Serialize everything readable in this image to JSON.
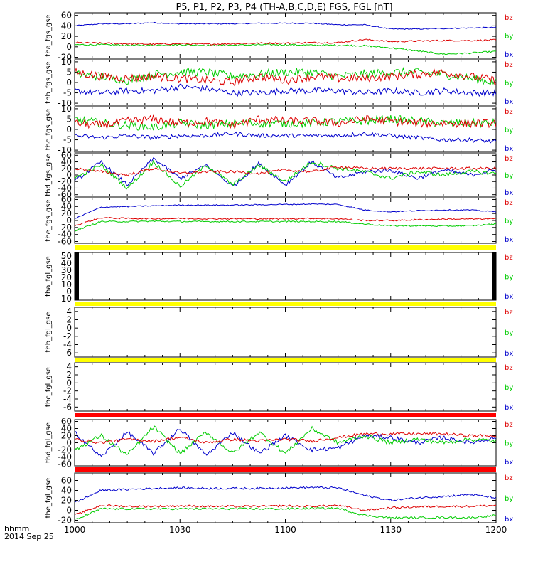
{
  "title": "P5, P1, P2, P3, P4 (TH-A,B,C,D,E) FGS, FGL [nT]",
  "footer": {
    "format": "hhmm",
    "date": "2014 Sep 25"
  },
  "x_ticks": [
    "1000",
    "1030",
    "1100",
    "1130",
    "1200"
  ],
  "legend_labels": [
    "bz",
    "by",
    "bx"
  ],
  "colors": {
    "bx": "#0000cc",
    "by": "#00cc00",
    "bz": "#dd0000",
    "bar_yellow": "#ffff00",
    "bar_red": "#ff0000",
    "axis": "#000000"
  },
  "chart_data": [
    {
      "type": "line",
      "name": "tha_fgs_gse",
      "ylabel": "tha_fgs_gse",
      "ylim": [
        -22,
        65
      ],
      "yticks": [
        -20,
        0,
        20,
        40,
        60
      ],
      "x_range": [
        "10:00",
        "12:00"
      ],
      "series": [
        {
          "name": "bz",
          "values": [
            8,
            7,
            6,
            5,
            6,
            5,
            6,
            7,
            7,
            8,
            8,
            14,
            10,
            11,
            12,
            12,
            13
          ],
          "noise": 1.5
        },
        {
          "name": "by",
          "values": [
            4,
            4,
            3,
            3,
            4,
            3,
            3,
            4,
            4,
            3,
            3,
            2,
            -2,
            -8,
            -14,
            -12,
            -9
          ],
          "noise": 1.5
        },
        {
          "name": "bx",
          "values": [
            40,
            44,
            44,
            46,
            44,
            44,
            44,
            45,
            45,
            45,
            42,
            42,
            34,
            34,
            35,
            36,
            37
          ],
          "noise": 1
        }
      ]
    },
    {
      "type": "line",
      "name": "thb_fgs_gse",
      "ylabel": "thb_fgs_gse",
      "ylim": [
        -11,
        11
      ],
      "yticks": [
        -10,
        -5,
        0,
        5,
        10
      ],
      "x_range": [
        "10:00",
        "12:00"
      ],
      "series": [
        {
          "name": "bz",
          "values": [
            5,
            3,
            2,
            3,
            2,
            1,
            0,
            3,
            1,
            3,
            2,
            2,
            3,
            4,
            5,
            3,
            1
          ],
          "noise": 2
        },
        {
          "name": "by",
          "values": [
            4,
            3,
            1,
            4,
            5,
            5,
            3,
            4,
            5,
            5,
            3,
            4,
            5,
            5,
            4,
            2,
            0
          ],
          "noise": 2
        },
        {
          "name": "bx",
          "values": [
            -4,
            -5,
            -4,
            -4,
            -2,
            -3,
            -5,
            -5,
            -4,
            -4,
            -4,
            -5,
            -4,
            -5,
            -4,
            -5,
            -5
          ],
          "noise": 1.5
        }
      ]
    },
    {
      "type": "line",
      "name": "thc_fgs_gse",
      "ylabel": "thc_fgs_gse",
      "ylim": [
        -11,
        11
      ],
      "yticks": [
        -10,
        -5,
        0,
        5,
        10
      ],
      "x_range": [
        "10:00",
        "12:00"
      ],
      "series": [
        {
          "name": "bz",
          "values": [
            3,
            2,
            4,
            5,
            3,
            4,
            2,
            5,
            4,
            4,
            3,
            5,
            4,
            3,
            3,
            3,
            3
          ],
          "noise": 2
        },
        {
          "name": "by",
          "values": [
            5,
            3,
            2,
            1,
            3,
            2,
            3,
            3,
            3,
            3,
            4,
            4,
            5,
            4,
            3,
            3,
            3
          ],
          "noise": 2
        },
        {
          "name": "bx",
          "values": [
            -3,
            -4,
            -3,
            -4,
            -3,
            -3,
            -2,
            -3,
            -3,
            -3,
            -3,
            -2,
            -3,
            -4,
            -5,
            -5,
            -6
          ],
          "noise": 1
        }
      ]
    },
    {
      "type": "line",
      "name": "thd_fgs_gse",
      "ylabel": "thd_fgs_gse",
      "ylim": [
        -65,
        65
      ],
      "yticks": [
        -60,
        -40,
        -20,
        0,
        20,
        40,
        60
      ],
      "x_range": [
        "10:00",
        "12:00"
      ],
      "series": [
        {
          "name": "bz",
          "values": [
            20,
            10,
            0,
            20,
            5,
            10,
            10,
            5,
            15,
            10,
            25,
            20,
            20,
            20,
            20,
            20,
            20
          ],
          "noise": 4
        },
        {
          "name": "by",
          "values": [
            -10,
            30,
            -40,
            40,
            -35,
            30,
            -30,
            30,
            -20,
            40,
            20,
            10,
            -10,
            10,
            0,
            10,
            5
          ],
          "noise": 6
        },
        {
          "name": "bx",
          "values": [
            -20,
            40,
            -30,
            50,
            -10,
            30,
            -35,
            35,
            -30,
            40,
            -10,
            10,
            15,
            -10,
            15,
            0,
            15
          ],
          "noise": 6
        }
      ]
    },
    {
      "type": "line",
      "name": "the_fgs_gse",
      "ylabel": "the_fgs_gse",
      "ylim": [
        -65,
        65
      ],
      "yticks": [
        -60,
        -40,
        -20,
        0,
        20,
        40,
        60
      ],
      "x_range": [
        "10:00",
        "12:00"
      ],
      "series": [
        {
          "name": "bz",
          "values": [
            -15,
            8,
            6,
            5,
            6,
            5,
            5,
            5,
            5,
            6,
            5,
            0,
            0,
            2,
            4,
            4,
            5
          ],
          "noise": 2
        },
        {
          "name": "by",
          "values": [
            -30,
            -3,
            -3,
            -2,
            -3,
            -3,
            -3,
            -3,
            -3,
            -3,
            -3,
            -10,
            -15,
            -15,
            -16,
            -15,
            -10
          ],
          "noise": 2
        },
        {
          "name": "bx",
          "values": [
            5,
            38,
            40,
            42,
            44,
            44,
            44,
            45,
            46,
            47,
            46,
            30,
            25,
            28,
            30,
            30,
            25
          ],
          "noise": 1.5
        }
      ]
    },
    {
      "type": "line",
      "name": "tha_fgl_gse",
      "ylabel": "tha_fgl_gse",
      "ylim": [
        -12,
        55
      ],
      "yticks": [
        -10,
        0,
        10,
        20,
        30,
        40,
        50
      ],
      "x_range": [
        "10:00",
        "12:00"
      ],
      "series": []
    },
    {
      "type": "line",
      "name": "thb_fgl_gse",
      "ylabel": "thb_fgl_gse",
      "ylim": [
        -7,
        5
      ],
      "yticks": [
        -6,
        -4,
        -2,
        0,
        2,
        4
      ],
      "x_range": [
        "10:00",
        "12:00"
      ],
      "series": []
    },
    {
      "type": "line",
      "name": "thc_fgl_gse",
      "ylabel": "thc_fgl_gse",
      "ylim": [
        -7,
        5
      ],
      "yticks": [
        -6,
        -4,
        -2,
        0,
        2,
        4
      ],
      "x_range": [
        "10:00",
        "12:00"
      ],
      "series": []
    },
    {
      "type": "line",
      "name": "thd_fgl_gse",
      "ylabel": "thd_fgl_gse",
      "ylim": [
        -65,
        65
      ],
      "yticks": [
        -60,
        -40,
        -20,
        0,
        20,
        40,
        60
      ],
      "x_range": [
        "10:00",
        "12:00"
      ],
      "series": [
        {
          "name": "bz",
          "values": [
            10,
            0,
            10,
            5,
            15,
            0,
            10,
            5,
            10,
            5,
            15,
            25,
            25,
            25,
            25,
            20,
            20
          ],
          "noise": 4
        },
        {
          "name": "by",
          "values": [
            -20,
            20,
            -35,
            45,
            -30,
            30,
            -30,
            30,
            -30,
            40,
            0,
            20,
            0,
            10,
            0,
            10,
            5
          ],
          "noise": 6
        },
        {
          "name": "bx",
          "values": [
            30,
            -40,
            30,
            -30,
            40,
            -35,
            30,
            -30,
            20,
            -20,
            -15,
            20,
            15,
            0,
            15,
            0,
            15
          ],
          "noise": 6
        }
      ]
    },
    {
      "type": "line",
      "name": "the_fgl_gse",
      "ylabel": "the_fgl_gse",
      "ylim": [
        -25,
        75
      ],
      "yticks": [
        -20,
        0,
        20,
        40,
        60
      ],
      "x_range": [
        "10:00",
        "12:00"
      ],
      "series": [
        {
          "name": "bz",
          "values": [
            -10,
            10,
            8,
            8,
            9,
            8,
            8,
            8,
            9,
            8,
            10,
            0,
            5,
            7,
            8,
            8,
            10
          ],
          "noise": 2
        },
        {
          "name": "by",
          "values": [
            -20,
            3,
            3,
            3,
            3,
            3,
            3,
            3,
            3,
            4,
            4,
            -10,
            -15,
            -15,
            -14,
            -15,
            -10
          ],
          "noise": 2
        },
        {
          "name": "bx",
          "values": [
            15,
            40,
            42,
            44,
            45,
            44,
            44,
            44,
            45,
            46,
            45,
            30,
            20,
            25,
            28,
            32,
            25
          ],
          "noise": 2
        }
      ]
    }
  ]
}
